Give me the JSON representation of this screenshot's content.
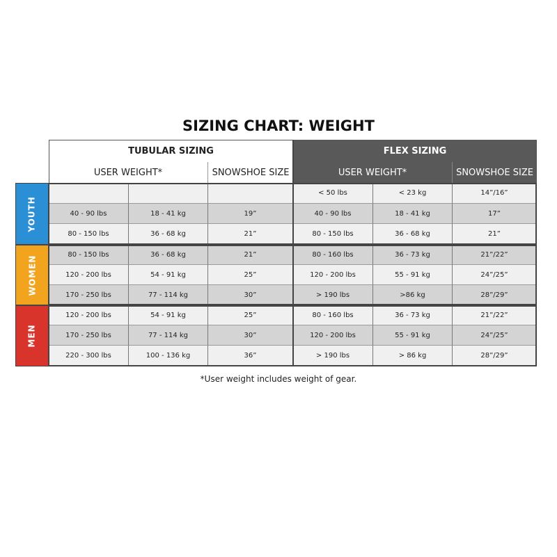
{
  "title": "SIZING CHART: WEIGHT",
  "groups": [
    {
      "title": "TUBULAR SIZING",
      "columns": [
        "USER WEIGHT*",
        "SNOWSHOE SIZE"
      ]
    },
    {
      "title": "FLEX SIZING",
      "columns": [
        "USER WEIGHT*",
        "SNOWSHOE SIZE"
      ]
    }
  ],
  "categories": [
    {
      "label": "YOUTH",
      "color": "#2b8fd6",
      "rows": [
        {
          "tubular": null,
          "flex": [
            "< 50 lbs",
            "< 23 kg",
            "14”/16”"
          ]
        },
        {
          "tubular": [
            "40 - 90 lbs",
            "18 - 41 kg",
            "19”"
          ],
          "flex": [
            "40 - 90 lbs",
            "18 - 41 kg",
            "17”"
          ]
        },
        {
          "tubular": [
            "80 - 150 lbs",
            "36 - 68 kg",
            "21”"
          ],
          "flex": [
            "80 - 150 lbs",
            "36 - 68 kg",
            "21”"
          ]
        }
      ]
    },
    {
      "label": "WOMEN",
      "color": "#f2a41e",
      "rows": [
        {
          "tubular": [
            "80 - 150 lbs",
            "36 - 68 kg",
            "21”"
          ],
          "flex": [
            "80 - 160 lbs",
            "36 - 73 kg",
            "21”/22”"
          ]
        },
        {
          "tubular": [
            "120 - 200 lbs",
            "54 - 91 kg",
            "25”"
          ],
          "flex": [
            "120 - 200 lbs",
            "55 - 91 kg",
            "24”/25”"
          ]
        },
        {
          "tubular": [
            "170 - 250 lbs",
            "77 - 114 kg",
            "30”"
          ],
          "flex": [
            "> 190 lbs",
            ">86 kg",
            "28”/29”"
          ]
        }
      ]
    },
    {
      "label": "MEN",
      "color": "#d8342b",
      "rows": [
        {
          "tubular": [
            "120 - 200 lbs",
            "54 - 91 kg",
            "25”"
          ],
          "flex": [
            "80 - 160 lbs",
            "36 - 73 kg",
            "21”/22”"
          ]
        },
        {
          "tubular": [
            "170 - 250 lbs",
            "77 - 114 kg",
            "30”"
          ],
          "flex": [
            "120 - 200 lbs",
            "55 - 91 kg",
            "24”/25”"
          ]
        },
        {
          "tubular": [
            "220 - 300 lbs",
            "100 - 136 kg",
            "36”"
          ],
          "flex": [
            "> 190 lbs",
            "> 86 kg",
            "28”/29”"
          ]
        }
      ]
    }
  ],
  "footnote": "*User weight includes weight of gear."
}
